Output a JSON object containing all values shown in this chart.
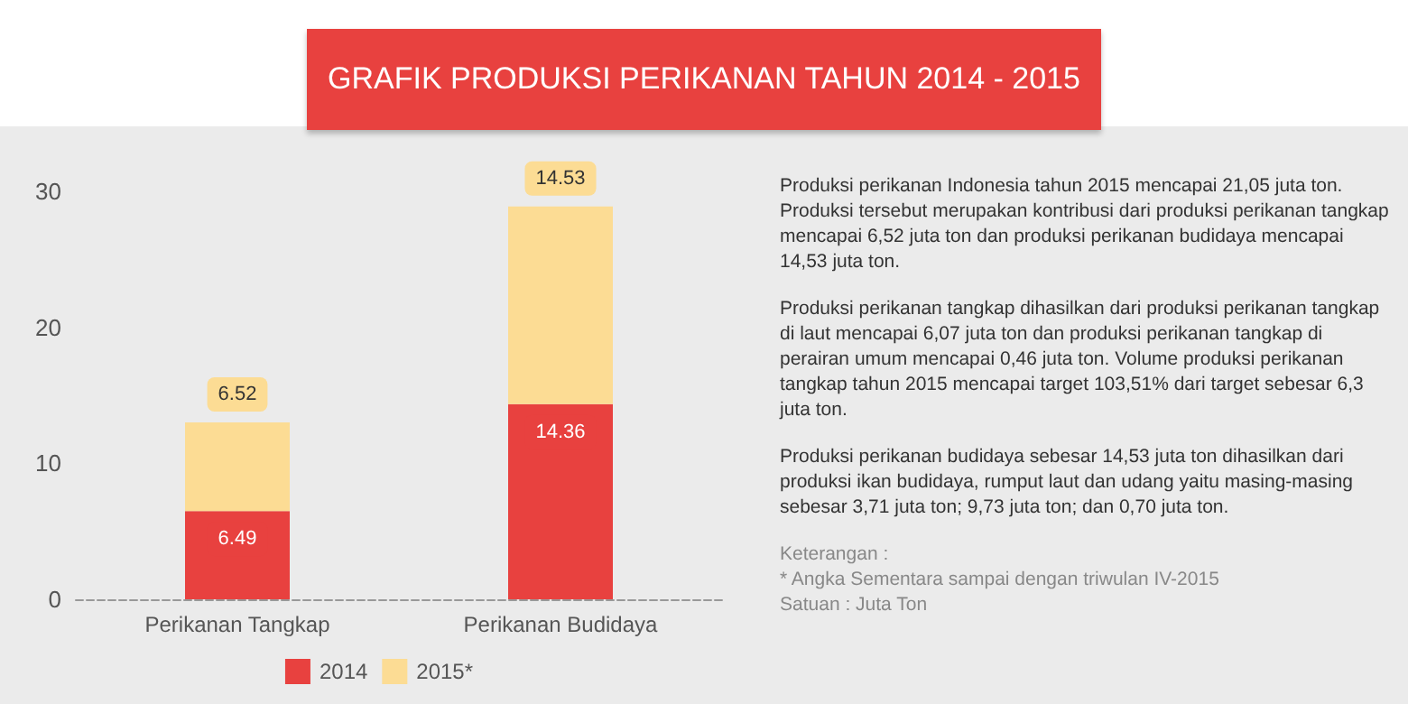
{
  "chart_data": {
    "type": "bar",
    "title": "GRAFIK PRODUKSI PERIKANAN TAHUN 2014 - 2015",
    "categories": [
      "Perikanan Tangkap",
      "Perikanan Budidaya"
    ],
    "series": [
      {
        "name": "2014",
        "color": "#e8413f",
        "values": [
          6.49,
          14.36
        ]
      },
      {
        "name": "2015*",
        "color": "#fcdc94",
        "values": [
          6.52,
          14.53
        ]
      }
    ],
    "stacked": true,
    "ylim": [
      0,
      30
    ],
    "yticks": [
      0,
      10,
      20,
      30
    ],
    "grid": false,
    "legend": "bottom",
    "data_labels": true,
    "annotations": [
      "Produksi perikanan Indonesia tahun 2015 mencapai 21,05 juta ton. Produksi tersebut merupakan kontribusi dari produksi perikanan tangkap mencapai 6,52 juta ton dan produksi perikanan budidaya mencapai 14,53 juta ton.",
      "Produksi perikanan tangkap dihasilkan dari produksi perikanan tangkap di laut mencapai 6,07 juta ton dan produksi perikanan tangkap di perairan umum mencapai 0,46 juta ton. Volume produksi perikanan tangkap tahun 2015 mencapai target 103,51% dari target sebesar 6,3 juta ton.",
      "Produksi perikanan budidaya sebesar 14,53 juta ton dihasilkan dari produksi ikan budidaya, rumput laut dan udang yaitu masing-masing sebesar 3,71 juta ton; 9,73 juta ton; dan 0,70 juta ton.",
      "Keterangan :",
      "* Angka Sementara sampai dengan triwulan IV-2015",
      "Satuan : Juta Ton"
    ]
  }
}
